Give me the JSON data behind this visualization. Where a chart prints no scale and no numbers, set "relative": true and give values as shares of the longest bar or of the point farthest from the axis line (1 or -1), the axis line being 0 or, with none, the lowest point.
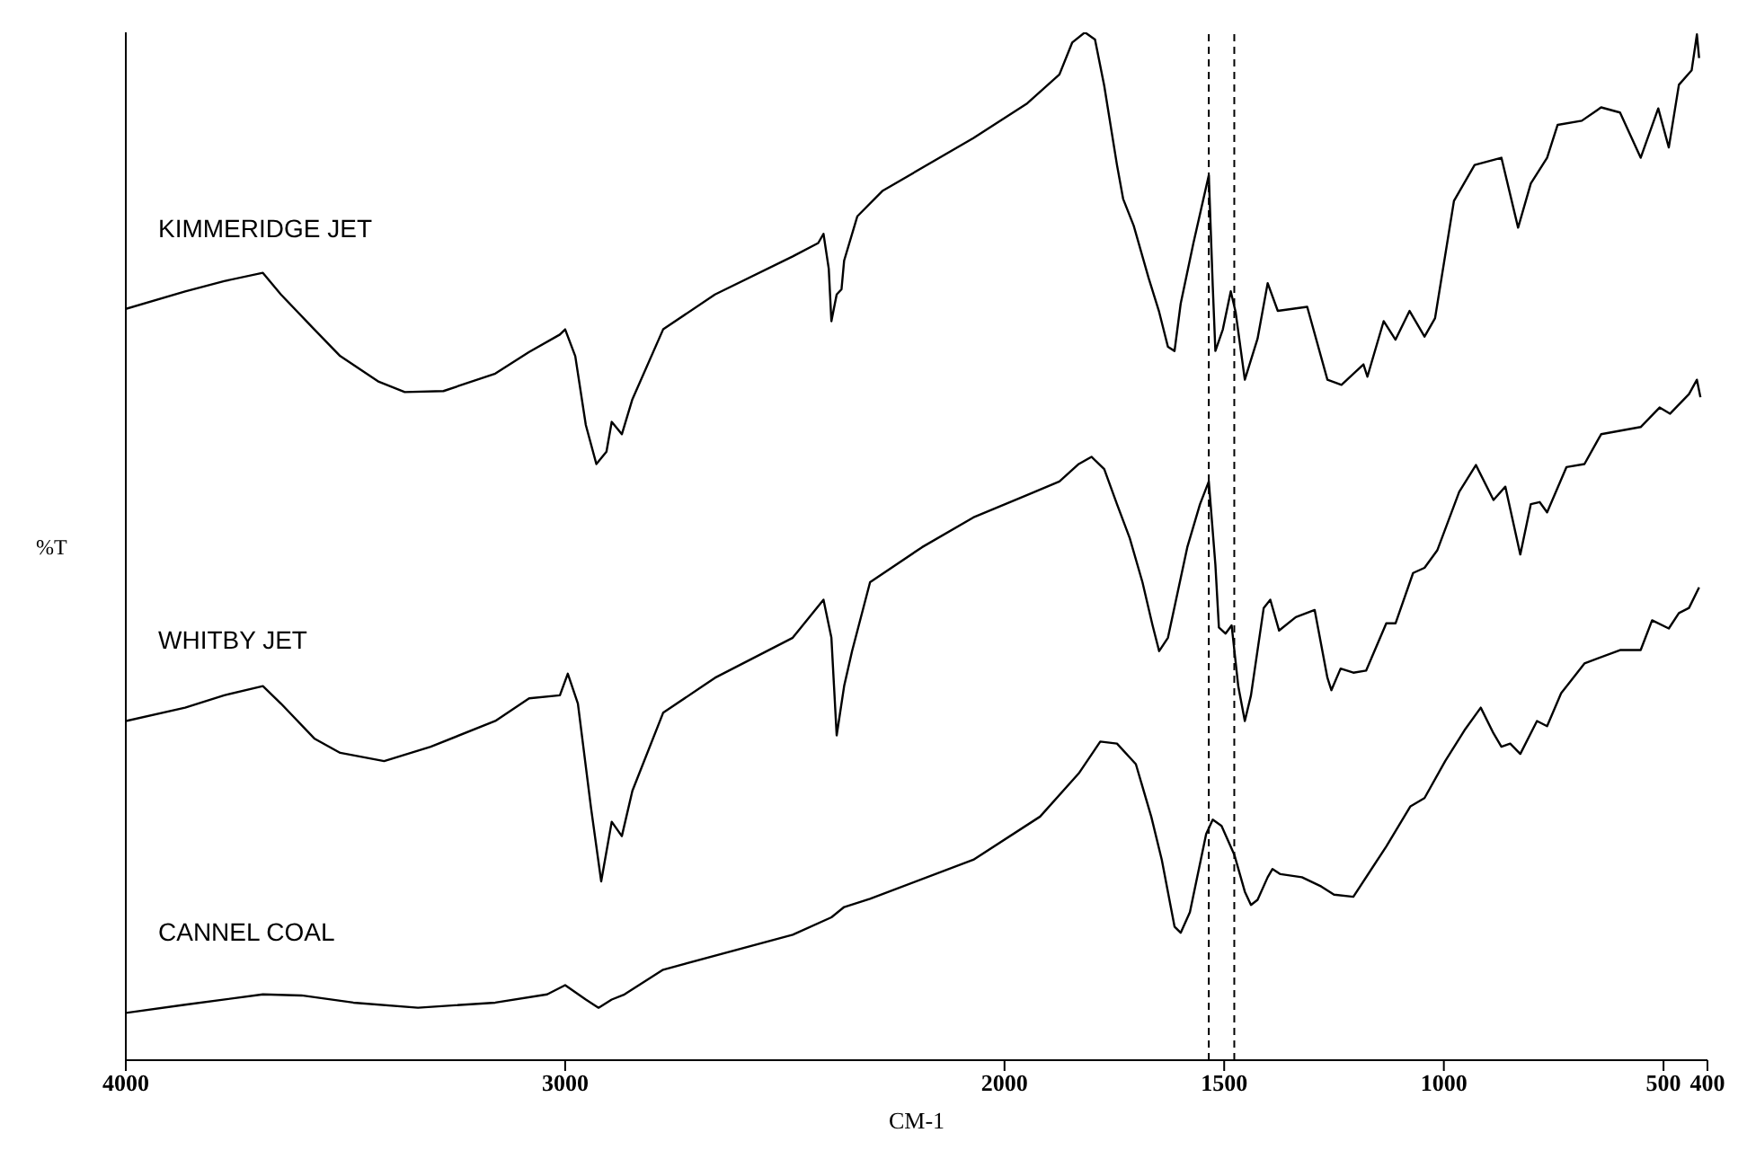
{
  "chart_data": {
    "type": "line",
    "xlabel": "CM-1",
    "ylabel": "%T",
    "relative": true,
    "xlim": [
      4000,
      400
    ],
    "xticks": [
      4000,
      3000,
      2000,
      1500,
      1000,
      500,
      400
    ],
    "grid": false,
    "legend": false,
    "marker": "none",
    "line_style": "solid",
    "ref_lines": [
      {
        "axis": "x",
        "value": 1535,
        "line_style": "dashed",
        "color": "#000000"
      },
      {
        "axis": "x",
        "value": 1477,
        "line_style": "dashed",
        "color": "#000000"
      }
    ],
    "series": [
      {
        "name": "KIMMERIDGE JET",
        "color": "#000000",
        "x": [
          4000,
          3865,
          3776,
          3688,
          3647,
          3571,
          3512,
          3424,
          3365,
          3277,
          3159,
          3082,
          3012,
          3000,
          2977,
          2953,
          2929,
          2906,
          2894,
          2871,
          2847,
          2777,
          2659,
          2482,
          2424,
          2412,
          2400,
          2394,
          2382,
          2371,
          2365,
          2335,
          2277,
          2071,
          1948,
          1875,
          1846,
          1817,
          1794,
          1773,
          1744,
          1730,
          1706,
          1672,
          1648,
          1628,
          1613,
          1599,
          1570,
          1535,
          1526,
          1520,
          1503,
          1485,
          1474,
          1453,
          1424,
          1401,
          1378,
          1311,
          1265,
          1233,
          1183,
          1174,
          1137,
          1110,
          1078,
          1044,
          1020,
          977,
          930,
          869,
          831,
          802,
          765,
          741,
          686,
          642,
          599,
          552,
          512,
          488,
          465,
          436,
          424,
          419
        ],
        "values": [
          0.731,
          0.748,
          0.758,
          0.766,
          0.745,
          0.711,
          0.685,
          0.66,
          0.65,
          0.651,
          0.668,
          0.689,
          0.706,
          0.711,
          0.685,
          0.618,
          0.58,
          0.592,
          0.621,
          0.609,
          0.643,
          0.711,
          0.745,
          0.782,
          0.795,
          0.804,
          0.77,
          0.719,
          0.745,
          0.75,
          0.778,
          0.821,
          0.846,
          0.897,
          0.931,
          0.959,
          0.99,
          1,
          0.993,
          0.948,
          0.871,
          0.838,
          0.812,
          0.761,
          0.728,
          0.694,
          0.69,
          0.736,
          0.795,
          0.861,
          0.753,
          0.69,
          0.711,
          0.748,
          0.728,
          0.662,
          0.702,
          0.756,
          0.729,
          0.733,
          0.662,
          0.657,
          0.677,
          0.665,
          0.719,
          0.701,
          0.729,
          0.704,
          0.722,
          0.836,
          0.871,
          0.878,
          0.81,
          0.853,
          0.878,
          0.91,
          0.914,
          0.927,
          0.922,
          0.878,
          0.926,
          0.888,
          0.949,
          0.963,
          0.998,
          0.975
        ]
      },
      {
        "name": "WHITBY JET",
        "color": "#000000",
        "x": [
          4000,
          3865,
          3776,
          3688,
          3647,
          3571,
          3512,
          3412,
          3306,
          3159,
          3082,
          3012,
          2994,
          2971,
          2941,
          2918,
          2894,
          2871,
          2847,
          2777,
          2659,
          2482,
          2412,
          2394,
          2382,
          2365,
          2347,
          2306,
          2188,
          2071,
          1948,
          1875,
          1831,
          1802,
          1773,
          1744,
          1715,
          1686,
          1663,
          1648,
          1628,
          1584,
          1555,
          1535,
          1520,
          1512,
          1497,
          1483,
          1468,
          1453,
          1439,
          1410,
          1395,
          1375,
          1337,
          1294,
          1265,
          1256,
          1235,
          1206,
          1177,
          1131,
          1110,
          1070,
          1044,
          1015,
          965,
          927,
          887,
          860,
          826,
          802,
          782,
          765,
          721,
          680,
          642,
          552,
          509,
          485,
          442,
          424,
          416
        ],
        "values": [
          0.33,
          0.343,
          0.355,
          0.364,
          0.347,
          0.313,
          0.299,
          0.291,
          0.305,
          0.33,
          0.352,
          0.355,
          0.376,
          0.347,
          0.245,
          0.174,
          0.232,
          0.218,
          0.262,
          0.338,
          0.372,
          0.411,
          0.448,
          0.411,
          0.316,
          0.364,
          0.398,
          0.465,
          0.499,
          0.528,
          0.55,
          0.563,
          0.58,
          0.587,
          0.575,
          0.541,
          0.508,
          0.465,
          0.423,
          0.398,
          0.411,
          0.499,
          0.541,
          0.563,
          0.482,
          0.421,
          0.415,
          0.423,
          0.364,
          0.33,
          0.355,
          0.44,
          0.448,
          0.418,
          0.431,
          0.438,
          0.372,
          0.36,
          0.381,
          0.377,
          0.379,
          0.425,
          0.425,
          0.474,
          0.479,
          0.496,
          0.553,
          0.579,
          0.545,
          0.558,
          0.492,
          0.541,
          0.543,
          0.533,
          0.577,
          0.58,
          0.609,
          0.616,
          0.635,
          0.629,
          0.648,
          0.662,
          0.645
        ]
      },
      {
        "name": "CANNEL COAL",
        "color": "#000000",
        "x": [
          4000,
          3865,
          3688,
          3600,
          3482,
          3335,
          3159,
          3041,
          3000,
          2953,
          2924,
          2894,
          2865,
          2777,
          2482,
          2394,
          2365,
          2306,
          2071,
          1919,
          1831,
          1782,
          1744,
          1701,
          1666,
          1642,
          1613,
          1599,
          1578,
          1541,
          1526,
          1506,
          1477,
          1453,
          1439,
          1424,
          1401,
          1390,
          1372,
          1323,
          1279,
          1250,
          1206,
          1131,
          1076,
          1044,
          997,
          953,
          916,
          887,
          869,
          849,
          826,
          788,
          765,
          733,
          680,
          599,
          552,
          526,
          488,
          465,
          442,
          419
        ],
        "values": [
          0.046,
          0.054,
          0.064,
          0.063,
          0.056,
          0.051,
          0.056,
          0.064,
          0.073,
          0.059,
          0.051,
          0.059,
          0.064,
          0.088,
          0.122,
          0.139,
          0.149,
          0.157,
          0.195,
          0.237,
          0.279,
          0.31,
          0.308,
          0.288,
          0.237,
          0.195,
          0.13,
          0.124,
          0.144,
          0.22,
          0.234,
          0.228,
          0.2,
          0.164,
          0.151,
          0.156,
          0.178,
          0.186,
          0.181,
          0.178,
          0.169,
          0.161,
          0.159,
          0.208,
          0.247,
          0.255,
          0.291,
          0.321,
          0.343,
          0.318,
          0.305,
          0.308,
          0.298,
          0.33,
          0.325,
          0.357,
          0.386,
          0.399,
          0.399,
          0.428,
          0.42,
          0.435,
          0.44,
          0.46
        ]
      }
    ]
  }
}
